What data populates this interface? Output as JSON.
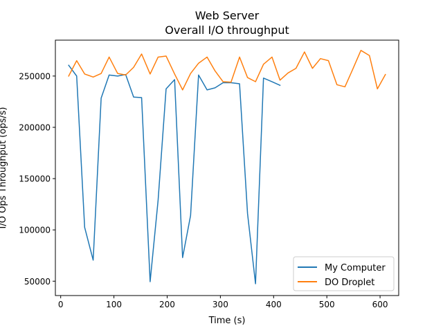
{
  "chart_data": {
    "type": "line",
    "title": "Web Server",
    "subtitle": "Overall I/O throughput",
    "xlabel": "Time (s)",
    "ylabel": "I/O Ops Throughput (ops/s)",
    "xlim": [
      -10,
      635
    ],
    "ylim": [
      36000,
      285000
    ],
    "x_ticks": [
      0,
      100,
      200,
      300,
      400,
      500,
      600
    ],
    "y_ticks": [
      50000,
      100000,
      150000,
      200000,
      250000
    ],
    "grid": false,
    "legend_position": "lower-right",
    "series": [
      {
        "name": "My Computer",
        "color": "#1f77b4",
        "x": [
          15,
          30,
          45,
          61,
          76,
          91,
          107,
          122,
          137,
          152,
          168,
          183,
          198,
          214,
          229,
          244,
          259,
          275,
          290,
          305,
          320,
          336,
          351,
          366,
          381,
          397,
          412
        ],
        "y": [
          260500,
          250000,
          102500,
          70500,
          228500,
          251000,
          250000,
          251500,
          229500,
          229000,
          49500,
          129000,
          237500,
          246500,
          73000,
          114000,
          251000,
          236500,
          238500,
          243500,
          243500,
          242500,
          116000,
          47500,
          248000,
          244500,
          241000
        ]
      },
      {
        "name": "DO Droplet",
        "color": "#ff7f0e",
        "x": [
          15,
          30,
          45,
          61,
          76,
          91,
          107,
          122,
          137,
          152,
          168,
          183,
          198,
          214,
          229,
          244,
          259,
          275,
          290,
          305,
          320,
          336,
          351,
          366,
          381,
          397,
          412,
          427,
          442,
          458,
          473,
          488,
          503,
          519,
          534,
          549,
          564,
          580,
          595,
          610
        ],
        "y": [
          250000,
          265000,
          252000,
          249000,
          252500,
          268500,
          252500,
          251000,
          258500,
          271500,
          252000,
          268500,
          269500,
          252000,
          236500,
          252500,
          262500,
          268500,
          255000,
          244500,
          244000,
          268500,
          248500,
          244500,
          261500,
          268500,
          246000,
          253000,
          257500,
          273500,
          257500,
          267000,
          265000,
          241500,
          239500,
          257000,
          275000,
          270000,
          237500,
          251500
        ]
      }
    ]
  }
}
